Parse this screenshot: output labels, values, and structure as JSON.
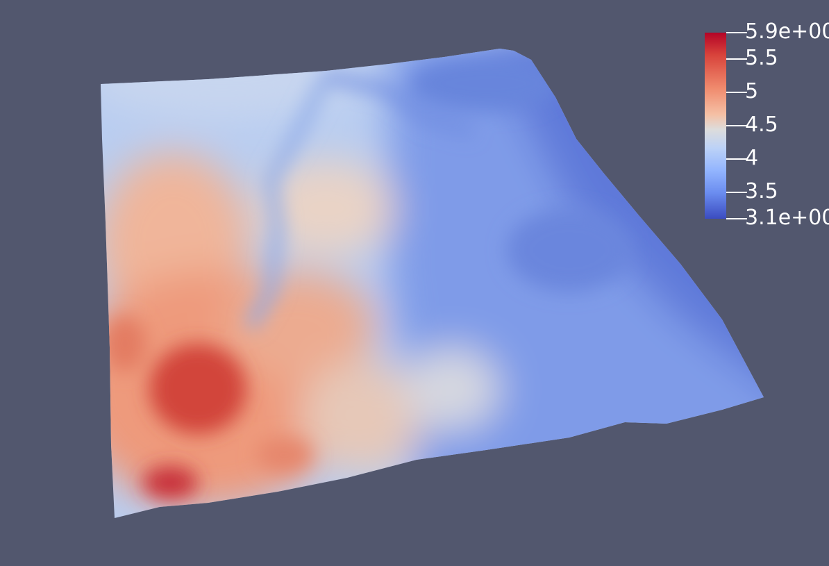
{
  "render_view": {
    "background_color": "#52576e",
    "colormap": [
      "#3b4cc0",
      "#6b8df0",
      "#93b5fe",
      "#bcd2f7",
      "#dddcdc",
      "#f5c0a5",
      "#f08b6e",
      "#d8433b",
      "#b40426"
    ]
  },
  "color_legend": {
    "range": [
      3.1,
      5.9
    ],
    "max_label": "5.9e+00",
    "min_label": "3.1e+00",
    "ticks": [
      {
        "value": 5.9,
        "label": "5.9e+00"
      },
      {
        "value": 5.5,
        "label": "5.5"
      },
      {
        "value": 5.0,
        "label": "5"
      },
      {
        "value": 4.5,
        "label": "4.5"
      },
      {
        "value": 4.0,
        "label": "4"
      },
      {
        "value": 3.5,
        "label": "3.5"
      },
      {
        "value": 3.1,
        "label": "3.1e+00"
      }
    ]
  }
}
